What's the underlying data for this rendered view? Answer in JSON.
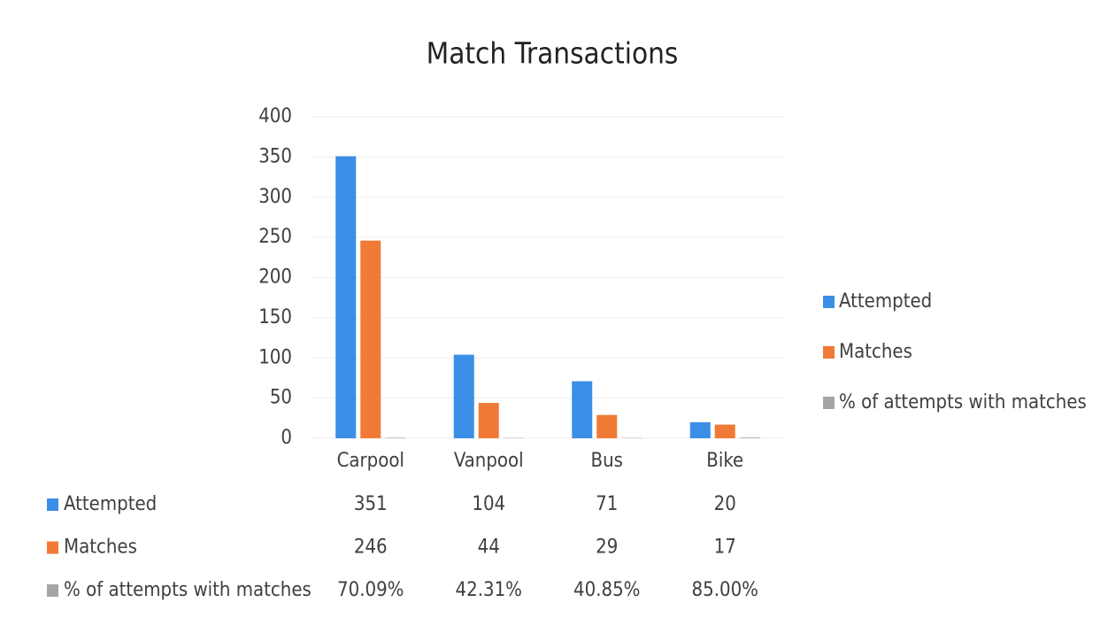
{
  "chart_data": {
    "type": "bar",
    "title": "Match Transactions",
    "categories": [
      "Carpool",
      "Vanpool",
      "Bus",
      "Bike"
    ],
    "series": [
      {
        "name": "Attempted",
        "color": "#3b8ee6",
        "values": [
          351,
          104,
          71,
          20
        ]
      },
      {
        "name": "Matches",
        "color": "#f07a36",
        "values": [
          246,
          44,
          29,
          17
        ]
      },
      {
        "name": "% of attempts with matches",
        "color": "#a5a5a5",
        "values": [
          0.7009,
          0.4231,
          0.4085,
          0.85
        ],
        "value_labels": [
          "70.09%",
          "42.31%",
          "40.85%",
          "85.00%"
        ]
      }
    ],
    "ylim": [
      0,
      400
    ],
    "yticks": [
      0,
      50,
      100,
      150,
      200,
      250,
      300,
      350,
      400
    ],
    "grid": true,
    "legend": "right",
    "data_table": true
  }
}
